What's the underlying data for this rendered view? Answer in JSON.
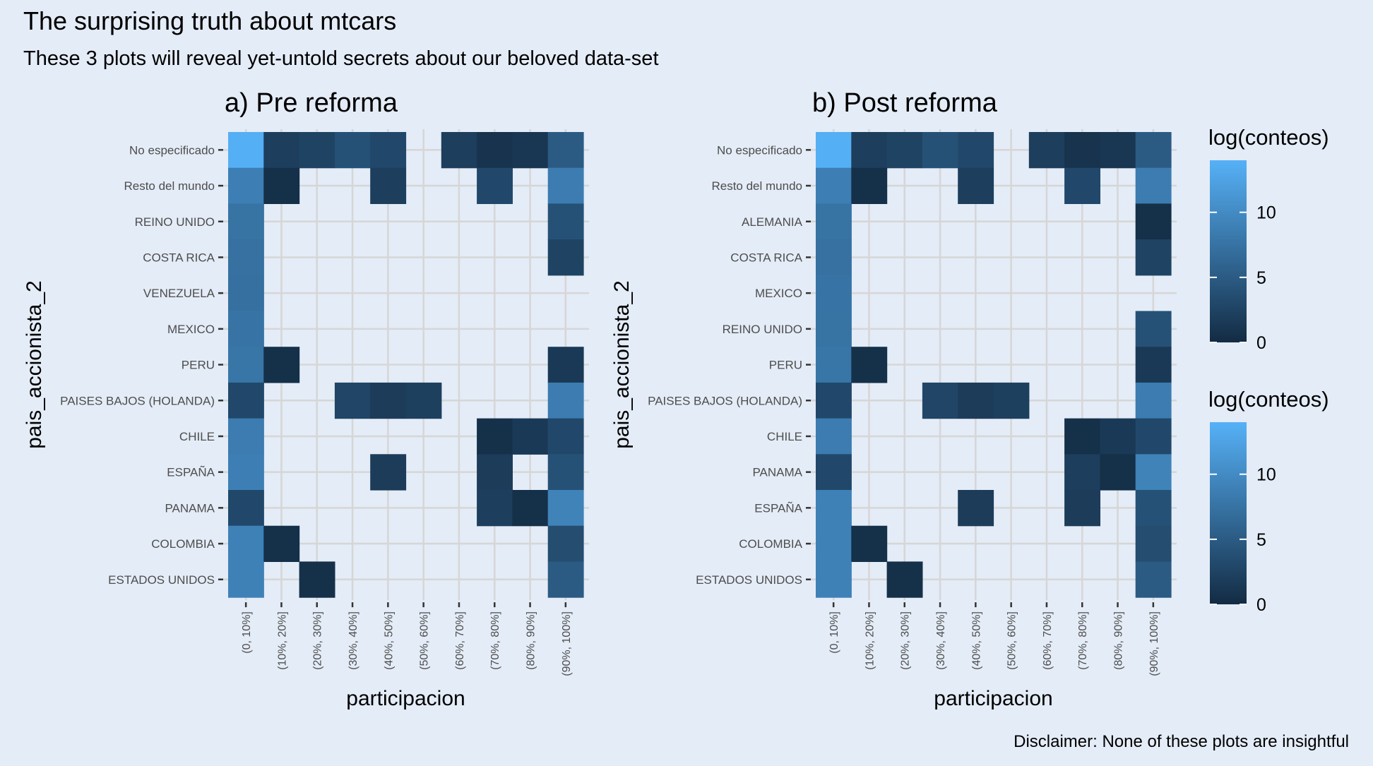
{
  "title": "The surprising truth about mtcars",
  "subtitle": "These 3 plots will reveal yet-untold secrets about our beloved data-set",
  "caption": "Disclaimer: None of these plots are insightful",
  "colors": {
    "background": "#e4ecf7",
    "grid": "#d6d6d6",
    "scale_low": "#132b43",
    "scale_high": "#56b1f7"
  },
  "chart_data": [
    {
      "type": "heatmap",
      "title": "a) Pre reforma",
      "xlabel": "participacion",
      "ylabel": "pais_accionista_2",
      "x_categories": [
        "(0, 10%]",
        "(10%, 20%]",
        "(20%, 30%]",
        "(30%, 40%]",
        "(40%, 50%]",
        "(50%, 60%]",
        "(60%, 70%]",
        "(70%, 80%]",
        "(80%, 90%]",
        "(90%, 100%]"
      ],
      "y_categories": [
        "No especificado",
        "Resto del mundo",
        "REINO UNIDO",
        "COSTA RICA",
        "VENEZUELA",
        "MEXICO",
        "PERU",
        "PAISES BAJOS (HOLANDA)",
        "CHILE",
        "ESPAÑA",
        "PANAMA",
        "COLOMBIA",
        "ESTADOS UNIDOS"
      ],
      "fill_label": "log(conteos)",
      "fill_range": [
        0,
        14
      ],
      "cells": [
        [
          13.8,
          2.0,
          2.5,
          4.0,
          3.0,
          null,
          2.0,
          0.8,
          1.2,
          5.0
        ],
        [
          8.8,
          0.5,
          null,
          null,
          2.0,
          null,
          null,
          3.0,
          null,
          8.5
        ],
        [
          7.5,
          null,
          null,
          null,
          null,
          null,
          null,
          null,
          null,
          4.0
        ],
        [
          7.3,
          null,
          null,
          null,
          null,
          null,
          null,
          null,
          null,
          2.5
        ],
        [
          7.2,
          null,
          null,
          null,
          null,
          null,
          null,
          null,
          null,
          null
        ],
        [
          7.6,
          null,
          null,
          null,
          null,
          null,
          null,
          null,
          null,
          null
        ],
        [
          7.8,
          0.5,
          null,
          null,
          null,
          null,
          null,
          null,
          null,
          1.5
        ],
        [
          3.0,
          null,
          null,
          2.7,
          1.8,
          2.2,
          null,
          null,
          null,
          8.5
        ],
        [
          8.5,
          null,
          null,
          null,
          null,
          null,
          null,
          0.5,
          1.5,
          3.0
        ],
        [
          8.8,
          null,
          null,
          null,
          1.8,
          null,
          null,
          1.8,
          null,
          4.0
        ],
        [
          3.0,
          null,
          null,
          null,
          null,
          null,
          null,
          2.0,
          0.5,
          9.2
        ],
        [
          9.0,
          0.5,
          null,
          null,
          null,
          null,
          null,
          null,
          null,
          3.5
        ],
        [
          9.0,
          null,
          0.5,
          null,
          null,
          null,
          null,
          null,
          null,
          5.0
        ]
      ]
    },
    {
      "type": "heatmap",
      "title": "b) Post reforma",
      "xlabel": "participacion",
      "ylabel": "pais_accionista_2",
      "x_categories": [
        "(0, 10%]",
        "(10%, 20%]",
        "(20%, 30%]",
        "(30%, 40%]",
        "(40%, 50%]",
        "(50%, 60%]",
        "(60%, 70%]",
        "(70%, 80%]",
        "(80%, 90%]",
        "(90%, 100%]"
      ],
      "y_categories": [
        "No especificado",
        "Resto del mundo",
        "ALEMANIA",
        "COSTA RICA",
        "MEXICO",
        "REINO UNIDO",
        "PERU",
        "PAISES BAJOS (HOLANDA)",
        "CHILE",
        "PANAMA",
        "ESPAÑA",
        "COLOMBIA",
        "ESTADOS UNIDOS"
      ],
      "fill_label": "log(conteos)",
      "fill_range": [
        0,
        14
      ],
      "cells": [
        [
          13.8,
          2.0,
          2.5,
          4.0,
          3.0,
          null,
          2.0,
          0.8,
          1.2,
          5.0
        ],
        [
          8.8,
          0.5,
          null,
          null,
          2.0,
          null,
          null,
          3.0,
          null,
          8.5
        ],
        [
          7.5,
          null,
          null,
          null,
          null,
          null,
          null,
          null,
          null,
          0.5
        ],
        [
          7.3,
          null,
          null,
          null,
          null,
          null,
          null,
          null,
          null,
          2.5
        ],
        [
          7.6,
          null,
          null,
          null,
          null,
          null,
          null,
          null,
          null,
          null
        ],
        [
          7.5,
          null,
          null,
          null,
          null,
          null,
          null,
          null,
          null,
          4.0
        ],
        [
          7.8,
          0.5,
          null,
          null,
          null,
          null,
          null,
          null,
          null,
          1.5
        ],
        [
          3.0,
          null,
          null,
          2.7,
          1.8,
          2.2,
          null,
          null,
          null,
          8.5
        ],
        [
          8.5,
          null,
          null,
          null,
          null,
          null,
          null,
          0.5,
          1.5,
          3.0
        ],
        [
          3.0,
          null,
          null,
          null,
          null,
          null,
          null,
          2.0,
          0.5,
          9.2
        ],
        [
          9.0,
          null,
          null,
          null,
          1.8,
          null,
          null,
          1.8,
          null,
          4.0
        ],
        [
          9.0,
          0.5,
          null,
          null,
          null,
          null,
          null,
          null,
          null,
          3.5
        ],
        [
          9.0,
          null,
          0.5,
          null,
          null,
          null,
          null,
          null,
          null,
          5.0
        ]
      ]
    }
  ],
  "legends": [
    {
      "title": "log(conteos)",
      "breaks": [
        0,
        5,
        10
      ],
      "range": [
        0,
        14
      ]
    },
    {
      "title": "log(conteos)",
      "breaks": [
        0,
        5,
        10
      ],
      "range": [
        0,
        14
      ]
    }
  ]
}
